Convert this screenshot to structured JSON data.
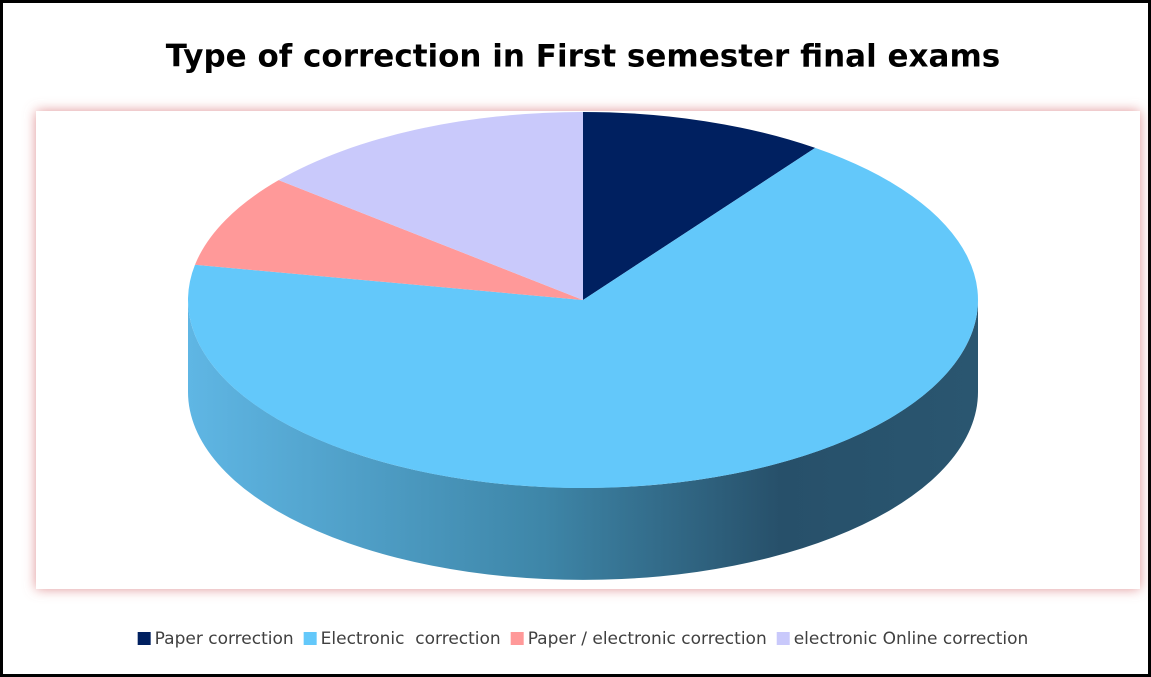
{
  "chart_data": {
    "type": "pie",
    "title": "Type of correction in First semester final exams",
    "categories": [
      "Paper correction",
      "Electronic  correction",
      "Paper / electronic correction",
      "electronic Online correction"
    ],
    "values": [
      10,
      68,
      8,
      14
    ],
    "colors": [
      "#002060",
      "#63c8fa",
      "#ff9999",
      "#c9c9fb"
    ],
    "legend": "bottom"
  }
}
